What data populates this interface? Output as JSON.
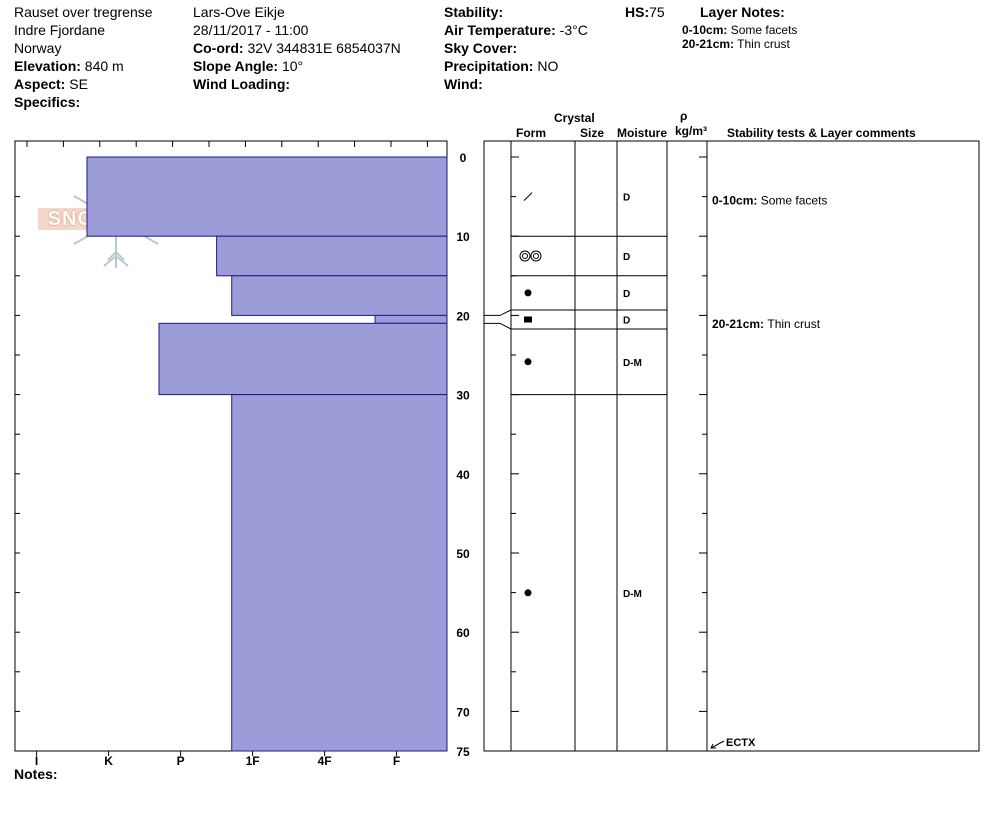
{
  "header": {
    "location": "Rauset over tregrense",
    "region": "Indre Fjordane",
    "country": "Norway",
    "elevation_label": "Elevation:",
    "elevation_value": "840 m",
    "aspect_label": "Aspect:",
    "aspect_value": "SE",
    "specifics_label": "Specifics:",
    "observer": "Lars-Ove Eikje",
    "datetime": "28/11/2017 - 11:00",
    "coord_label": "Co-ord:",
    "coord_value": "32V 344831E 6854037N",
    "slope_label": "Slope Angle:",
    "slope_value": "10°",
    "wind_loading_label": "Wind Loading:",
    "stability_label": "Stability:",
    "air_temp_label": "Air Temperature:",
    "air_temp_value": "-3°C",
    "sky_label": "Sky Cover:",
    "precip_label": "Precipitation:",
    "precip_value": "NO",
    "wind_label": "Wind:",
    "hs_label": "HS:",
    "hs_value": "75",
    "layer_notes_title": "Layer Notes:",
    "layer_notes": [
      {
        "range": "0-10cm:",
        "text": "Some facets"
      },
      {
        "range": "20-21cm:",
        "text": "Thin crust"
      }
    ]
  },
  "columns": {
    "crystal": "Crystal",
    "form": "Form",
    "size": "Size",
    "moisture": "Moisture",
    "rho": "ρ",
    "density_unit": "kg/m³",
    "stability_comments": "Stability tests & Layer comments"
  },
  "logo_text": "SNOW PILOT",
  "notes_label": "Notes:",
  "colors": {
    "hardness_fill": "#9c9cd8",
    "hardness_stroke": "#1a1a8c"
  },
  "chart_data": {
    "type": "bar",
    "orientation": "horizontal",
    "depth_ticks": [
      0,
      10,
      20,
      30,
      40,
      50,
      60,
      70,
      75
    ],
    "depth_range": [
      0,
      75
    ],
    "hardness_ticks": [
      "I",
      "K",
      "P",
      "1F",
      "4F",
      "F"
    ],
    "hardness_range": [
      -0.3,
      5.7
    ],
    "layers": [
      {
        "top": 0,
        "bottom": 10,
        "hardness": 5.0
      },
      {
        "top": 10,
        "bottom": 15,
        "hardness": 3.2
      },
      {
        "top": 15,
        "bottom": 20,
        "hardness": 2.99
      },
      {
        "top": 20,
        "bottom": 21,
        "hardness": 1.0
      },
      {
        "top": 21,
        "bottom": 30,
        "hardness": 4.0
      },
      {
        "top": 30,
        "bottom": 75,
        "hardness": 2.99
      }
    ],
    "layer_table": [
      {
        "top": 0,
        "bottom": 10,
        "form": "facet",
        "moisture": "D"
      },
      {
        "top": 10,
        "bottom": 15,
        "form": "depth-hoar",
        "moisture": "D"
      },
      {
        "top": 15,
        "bottom": 20,
        "form": "round",
        "moisture": "D"
      },
      {
        "top": 20,
        "bottom": 21,
        "form": "crust",
        "moisture": "D"
      },
      {
        "top": 21,
        "bottom": 30,
        "form": "round",
        "moisture": "D-M"
      },
      {
        "top": 30,
        "bottom": 75,
        "form": "round",
        "moisture": "D-M"
      }
    ],
    "comments": [
      {
        "depth": 5,
        "range": "0-10cm:",
        "text": "Some facets"
      },
      {
        "depth": 21,
        "range": "20-21cm:",
        "text": "Thin crust"
      }
    ],
    "stability_tests": [
      {
        "depth": 75,
        "label": "ECTX"
      }
    ]
  }
}
